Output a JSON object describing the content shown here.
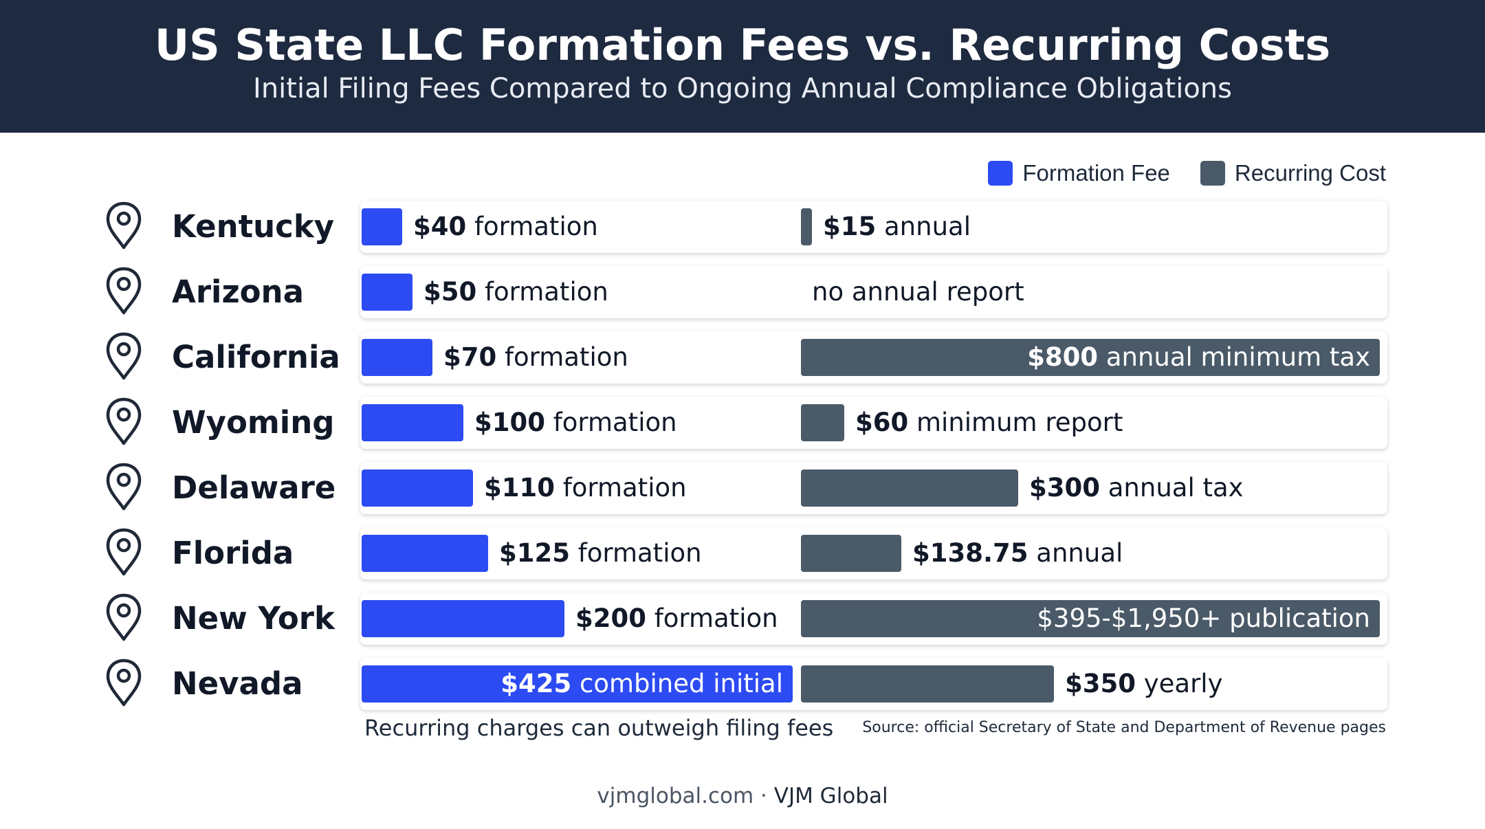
{
  "header": {
    "title": "US State LLC Formation Fees vs. Recurring Costs",
    "subtitle": "Initial Filing Fees Compared to Ongoing Annual Compliance Obligations"
  },
  "legend": [
    {
      "label": "Formation Fee",
      "color": "#2c4bf2"
    },
    {
      "label": "Recurring Cost",
      "color": "#4b5a68"
    }
  ],
  "colors": {
    "formation": "#2c4bf2",
    "recurring": "#4b5a68",
    "header_bg": "#1e2a40"
  },
  "icons": {
    "state": "map-pin-icon"
  },
  "chart_data": {
    "type": "bar",
    "categories": [
      "Kentucky",
      "Arizona",
      "California",
      "Wyoming",
      "Delaware",
      "Florida",
      "New York",
      "Nevada"
    ],
    "series": [
      {
        "name": "Formation Fee",
        "values": [
          40,
          50,
          70,
          100,
          110,
          125,
          200,
          425
        ]
      },
      {
        "name": "Recurring Cost",
        "values": [
          15,
          0,
          800,
          60,
          300,
          138.75,
          800,
          350
        ]
      }
    ],
    "rows": [
      {
        "state": "Kentucky",
        "formation_value": 40,
        "formation_amount": "$40",
        "formation_text": " formation",
        "recurring_value": 15,
        "recurring_amount": "$15",
        "recurring_text": " annual"
      },
      {
        "state": "Arizona",
        "formation_value": 50,
        "formation_amount": "$50",
        "formation_text": " formation",
        "recurring_value": 0,
        "recurring_amount": "",
        "recurring_text": "no annual report"
      },
      {
        "state": "California",
        "formation_value": 70,
        "formation_amount": "$70",
        "formation_text": " formation",
        "recurring_value": 800,
        "recurring_amount": "$800",
        "recurring_text": " annual minimum tax"
      },
      {
        "state": "Wyoming",
        "formation_value": 100,
        "formation_amount": "$100",
        "formation_text": " formation",
        "recurring_value": 60,
        "recurring_amount": "$60",
        "recurring_text": " minimum report"
      },
      {
        "state": "Delaware",
        "formation_value": 110,
        "formation_amount": "$110",
        "formation_text": " formation",
        "recurring_value": 300,
        "recurring_amount": "$300",
        "recurring_text": " annual tax"
      },
      {
        "state": "Florida",
        "formation_value": 125,
        "formation_amount": "$125",
        "formation_text": " formation",
        "recurring_value": 138.75,
        "recurring_amount": "$138.75",
        "recurring_text": " annual"
      },
      {
        "state": "New York",
        "formation_value": 200,
        "formation_amount": "$200",
        "formation_text": " formation",
        "recurring_value": 800,
        "recurring_amount": "",
        "recurring_text": "$395-$1,950+ publication"
      },
      {
        "state": "Nevada",
        "formation_value": 425,
        "formation_amount": "$425",
        "formation_text": " combined initial",
        "recurring_value": 350,
        "recurring_amount": "$350",
        "recurring_text": " yearly"
      }
    ]
  },
  "note": "Recurring charges can outweigh filing fees",
  "source": "Source: official Secretary of State and Department of Revenue pages",
  "footer": {
    "site": "vjmglobal.com",
    "separator": " · ",
    "brand": "VJM Global"
  }
}
